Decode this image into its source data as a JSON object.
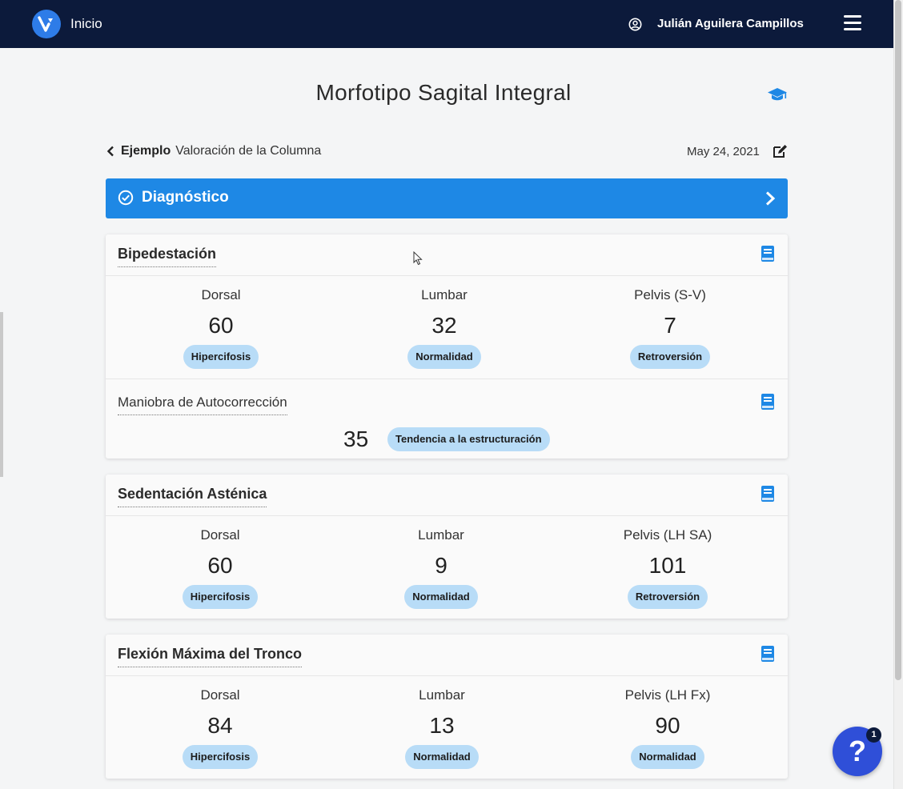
{
  "nav": {
    "home_label": "Inicio",
    "user_name": "Julián Aguilera Campillos"
  },
  "page": {
    "title": "Morfotipo Sagital Integral",
    "breadcrumb_bold": "Ejemplo",
    "breadcrumb_text": "Valoración de la Columna",
    "date": "May 24, 2021"
  },
  "diagnosis": {
    "label": "Diagnóstico"
  },
  "cards": [
    {
      "title": "Bipedestación",
      "metrics": [
        {
          "label": "Dorsal",
          "value": "60",
          "badge": "Hipercifosis"
        },
        {
          "label": "Lumbar",
          "value": "32",
          "badge": "Normalidad"
        },
        {
          "label": "Pelvis (S-V)",
          "value": "7",
          "badge": "Retroversión"
        }
      ],
      "correction": {
        "label": "Maniobra de Autocorrección",
        "value": "35",
        "badge": "Tendencia a la estructuración"
      }
    },
    {
      "title": "Sedentación Asténica",
      "metrics": [
        {
          "label": "Dorsal",
          "value": "60",
          "badge": "Hipercifosis"
        },
        {
          "label": "Lumbar",
          "value": "9",
          "badge": "Normalidad"
        },
        {
          "label": "Pelvis (LH SA)",
          "value": "101",
          "badge": "Retroversión"
        }
      ]
    },
    {
      "title": "Flexión Máxima del Tronco",
      "metrics": [
        {
          "label": "Dorsal",
          "value": "84",
          "badge": "Hipercifosis"
        },
        {
          "label": "Lumbar",
          "value": "13",
          "badge": "Normalidad"
        },
        {
          "label": "Pelvis (LH Fx)",
          "value": "90",
          "badge": "Normalidad"
        }
      ]
    }
  ],
  "help": {
    "label": "?",
    "notifications": "1"
  },
  "colors": {
    "navbar": "#0c1a3b",
    "accent": "#1e88e5",
    "badge": "#b8dcf7",
    "help_button": "#2f4fd8"
  }
}
